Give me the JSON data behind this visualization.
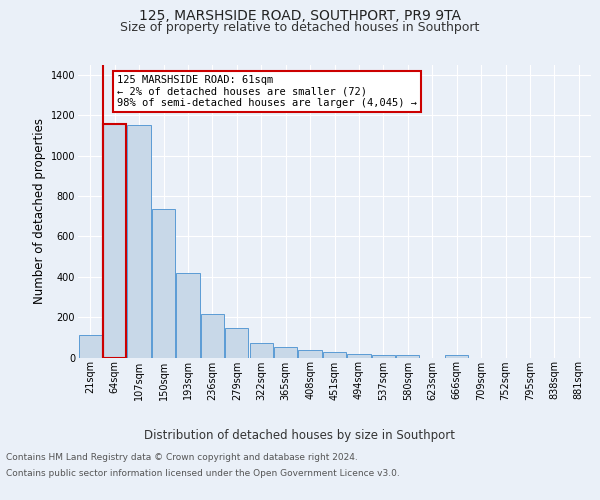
{
  "title": "125, MARSHSIDE ROAD, SOUTHPORT, PR9 9TA",
  "subtitle": "Size of property relative to detached houses in Southport",
  "xlabel": "Distribution of detached houses by size in Southport",
  "ylabel": "Number of detached properties",
  "footer_line1": "Contains HM Land Registry data © Crown copyright and database right 2024.",
  "footer_line2": "Contains public sector information licensed under the Open Government Licence v3.0.",
  "categories": [
    "21sqm",
    "64sqm",
    "107sqm",
    "150sqm",
    "193sqm",
    "236sqm",
    "279sqm",
    "322sqm",
    "365sqm",
    "408sqm",
    "451sqm",
    "494sqm",
    "537sqm",
    "580sqm",
    "623sqm",
    "666sqm",
    "709sqm",
    "752sqm",
    "795sqm",
    "838sqm",
    "881sqm"
  ],
  "values": [
    110,
    1160,
    1155,
    735,
    420,
    218,
    148,
    72,
    50,
    36,
    25,
    18,
    14,
    10,
    0,
    12,
    0,
    0,
    0,
    0,
    0
  ],
  "bar_color": "#c8d8e8",
  "bar_edge_color": "#5b9bd5",
  "highlight_bar_index": 1,
  "highlight_bar_edge_color": "#cc0000",
  "annotation_text_line1": "125 MARSHSIDE ROAD: 61sqm",
  "annotation_text_line2": "← 2% of detached houses are smaller (72)",
  "annotation_text_line3": "98% of semi-detached houses are larger (4,045) →",
  "annotation_box_color": "#ffffff",
  "annotation_box_edge_color": "#cc0000",
  "ylim": [
    0,
    1450
  ],
  "yticks": [
    0,
    200,
    400,
    600,
    800,
    1000,
    1200,
    1400
  ],
  "bg_color": "#eaf0f8",
  "plot_bg_color": "#eaf0f8",
  "grid_color": "#ffffff",
  "title_fontsize": 10,
  "subtitle_fontsize": 9,
  "axis_label_fontsize": 8.5,
  "tick_fontsize": 7,
  "footer_fontsize": 6.5,
  "red_line_color": "#cc0000"
}
